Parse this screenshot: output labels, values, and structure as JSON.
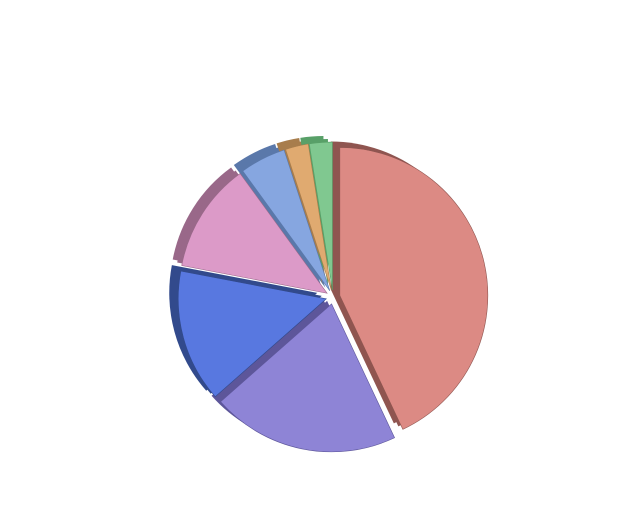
{
  "chart_data": {
    "type": "pie",
    "style": "3d-exploded",
    "title": "",
    "legend": "none",
    "start_angle": "12 o'clock",
    "direction": "clockwise",
    "slices": [
      {
        "value": 43.0,
        "color": "#dc8a84",
        "side_color": "#8f5550"
      },
      {
        "value": 20.5,
        "color": "#8e84d6",
        "side_color": "#5d569a"
      },
      {
        "value": 14.5,
        "color": "#5878e0",
        "side_color": "#324a8c"
      },
      {
        "value": 12.0,
        "color": "#dc9ac8",
        "side_color": "#996889"
      },
      {
        "value": 5.0,
        "color": "#86a6e0",
        "side_color": "#5a78aa"
      },
      {
        "value": 2.5,
        "color": "#e0aa70",
        "side_color": "#a87d4c"
      },
      {
        "value": 2.5,
        "color": "#80c890",
        "side_color": "#58a068"
      }
    ]
  }
}
